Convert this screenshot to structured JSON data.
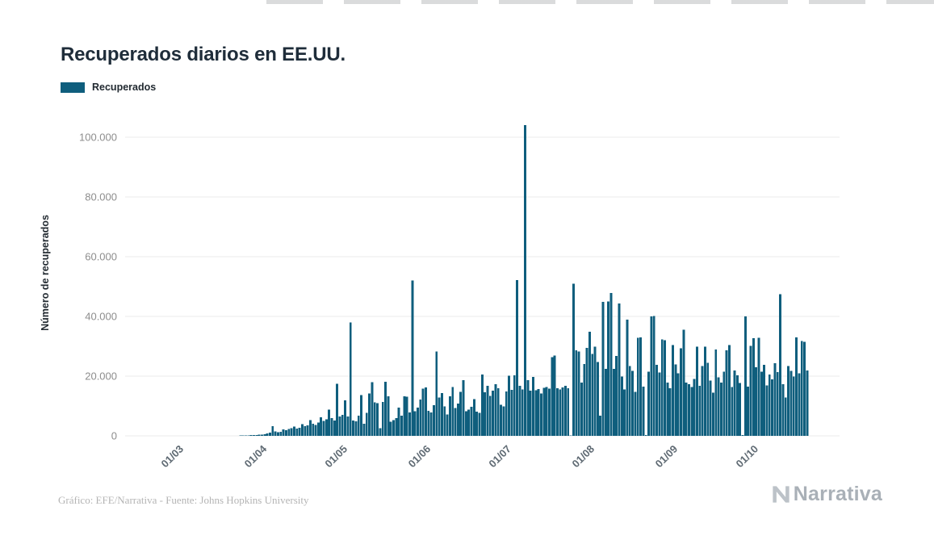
{
  "page": {
    "title": "Recuperados diarios en EE.UU."
  },
  "legend": {
    "label": "Recuperados"
  },
  "axes": {
    "y_label": "Número de recuperados"
  },
  "footer": {
    "credit": "Gráfico: EFE/Narrativa - Fuente: Johns Hopkins University",
    "brand": "Narrativa"
  },
  "chart_data": {
    "type": "bar",
    "title": "Recuperados diarios en EE.UU.",
    "series_name": "Recuperados",
    "xlabel": "",
    "ylabel": "Número de recuperados",
    "bar_color": "#0f5e7d",
    "grid": "horizontal",
    "legend_position": "top-left",
    "ylim": [
      0,
      104000
    ],
    "start_date": "01/03/2020",
    "frequency": "daily",
    "y_ticks": [
      {
        "value": 0,
        "label": "0"
      },
      {
        "value": 20000,
        "label": "20.000"
      },
      {
        "value": 40000,
        "label": "40.000"
      },
      {
        "value": 60000,
        "label": "60.000"
      },
      {
        "value": 80000,
        "label": "80.000"
      },
      {
        "value": 100000,
        "label": "100.000"
      }
    ],
    "x_ticks": [
      {
        "day": 0,
        "label": "01/03"
      },
      {
        "day": 31,
        "label": "01/04"
      },
      {
        "day": 61,
        "label": "01/05"
      },
      {
        "day": 92,
        "label": "01/06"
      },
      {
        "day": 122,
        "label": "01/07"
      },
      {
        "day": 153,
        "label": "01/08"
      },
      {
        "day": 184,
        "label": "01/09"
      },
      {
        "day": 214,
        "label": "01/10"
      }
    ],
    "values": [
      0,
      0,
      0,
      0,
      0,
      0,
      0,
      0,
      0,
      0,
      0,
      0,
      0,
      0,
      0,
      0,
      0,
      0,
      0,
      0,
      50,
      80,
      100,
      140,
      180,
      220,
      270,
      320,
      380,
      440,
      520,
      800,
      1100,
      3300,
      1500,
      1200,
      1400,
      2100,
      1900,
      2300,
      2600,
      3100,
      2400,
      2700,
      3900,
      3200,
      3500,
      5300,
      4100,
      3700,
      4500,
      6200,
      5000,
      5600,
      8800,
      6000,
      5200,
      17500,
      6500,
      7000,
      11900,
      6500,
      38000,
      5200,
      4800,
      6800,
      13600,
      4000,
      7700,
      14200,
      18000,
      11200,
      11000,
      2600,
      11300,
      18100,
      13200,
      4700,
      5300,
      6000,
      9500,
      6800,
      13300,
      13100,
      7800,
      52000,
      8300,
      9400,
      12100,
      15800,
      16200,
      8400,
      7800,
      10300,
      28200,
      12800,
      14300,
      9800,
      7200,
      13200,
      16400,
      9300,
      10800,
      14700,
      18700,
      8200,
      8800,
      9700,
      12300,
      8100,
      7700,
      20600,
      14600,
      16700,
      13400,
      15100,
      17300,
      16000,
      10400,
      9900,
      14800,
      20200,
      15400,
      20300,
      52200,
      16800,
      15600,
      104000,
      18600,
      15200,
      19700,
      15300,
      15700,
      14200,
      16100,
      16400,
      15800,
      26300,
      26900,
      16000,
      15500,
      16200,
      16800,
      15900,
      200,
      51000,
      28600,
      28200,
      17900,
      24100,
      29500,
      34800,
      27400,
      29800,
      24700,
      6800,
      44800,
      22500,
      45000,
      47800,
      22400,
      26700,
      44300,
      19800,
      15600,
      38900,
      23400,
      21700,
      14700,
      32900,
      33000,
      16500,
      300,
      21500,
      40000,
      40200,
      23800,
      21200,
      32300,
      32000,
      17900,
      16000,
      30400,
      23900,
      21000,
      29300,
      35500,
      17800,
      17300,
      16400,
      19000,
      29800,
      16800,
      23400,
      29800,
      24500,
      18500,
      14500,
      28900,
      19600,
      17800,
      21500,
      28600,
      30400,
      16300,
      21900,
      20300,
      17700,
      300,
      40000,
      16500,
      30200,
      32700,
      23000,
      32800,
      21500,
      23800,
      16900,
      20600,
      18900,
      24300,
      21300,
      47500,
      17300,
      12800,
      23400,
      21700,
      19800,
      33000,
      21000,
      31700,
      31500,
      21900
    ]
  }
}
